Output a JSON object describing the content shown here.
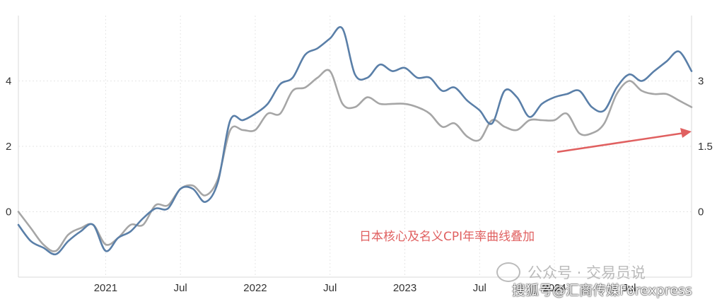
{
  "chart_data": {
    "type": "line",
    "title": "",
    "annotation": "日本核心及名义CPI年率曲线叠加",
    "x_ticks": [
      "2021",
      "Jul",
      "2022",
      "Jul",
      "2023",
      "Jul",
      "2024",
      "Jul"
    ],
    "x_tick_dates": [
      "2021-01",
      "2021-07",
      "2022-01",
      "2022-07",
      "2023-01",
      "2023-07",
      "2024-01",
      "2024-07"
    ],
    "xlim": [
      "2020-06",
      "2024-12"
    ],
    "left_axis": {
      "ticks": [
        "0",
        "2",
        "4"
      ],
      "tick_values": [
        0,
        2,
        4
      ],
      "ylim": [
        -2.0,
        6.0
      ]
    },
    "right_axis": {
      "ticks": [
        "0",
        "1.5",
        "3"
      ],
      "tick_values": [
        0,
        1.5,
        3
      ],
      "ylim": [
        -1.5,
        4.5
      ]
    },
    "grid": true,
    "series": [
      {
        "axis": "left",
        "color": "#5a7fa8",
        "x": [
          "2020-06",
          "2020-07",
          "2020-08",
          "2020-09",
          "2020-10",
          "2020-11",
          "2020-12",
          "2021-01",
          "2021-02",
          "2021-03",
          "2021-04",
          "2021-05",
          "2021-06",
          "2021-07",
          "2021-08",
          "2021-09",
          "2021-10",
          "2021-11",
          "2021-12",
          "2022-01",
          "2022-02",
          "2022-03",
          "2022-04",
          "2022-05",
          "2022-06",
          "2022-07",
          "2022-08",
          "2022-09",
          "2022-10",
          "2022-11",
          "2022-12",
          "2023-01",
          "2023-02",
          "2023-03",
          "2023-04",
          "2023-05",
          "2023-06",
          "2023-07",
          "2023-08",
          "2023-09",
          "2023-10",
          "2023-11",
          "2023-12",
          "2024-01",
          "2024-02",
          "2024-03",
          "2024-04",
          "2024-05",
          "2024-06",
          "2024-07",
          "2024-08",
          "2024-09",
          "2024-10",
          "2024-11",
          "2024-12"
        ],
        "values": [
          -0.4,
          -0.9,
          -1.1,
          -1.3,
          -0.9,
          -0.6,
          -0.4,
          -1.2,
          -0.8,
          -0.6,
          -0.2,
          0.1,
          0.1,
          0.7,
          0.7,
          0.3,
          0.9,
          2.8,
          2.8,
          3.0,
          3.3,
          3.9,
          4.1,
          4.8,
          5.0,
          5.3,
          5.6,
          4.2,
          4.1,
          4.5,
          4.3,
          4.4,
          4.1,
          4.1,
          3.7,
          3.8,
          3.4,
          3.1,
          2.7,
          3.7,
          3.5,
          2.9,
          3.3,
          3.5,
          3.6,
          3.7,
          3.2,
          3.1,
          3.8,
          4.2,
          4.0,
          4.3,
          4.6,
          4.9,
          4.3
        ]
      },
      {
        "axis": "left",
        "color": "#a6a6a6",
        "x": [
          "2020-06",
          "2020-07",
          "2020-08",
          "2020-09",
          "2020-10",
          "2020-11",
          "2020-12",
          "2021-01",
          "2021-02",
          "2021-03",
          "2021-04",
          "2021-05",
          "2021-06",
          "2021-07",
          "2021-08",
          "2021-09",
          "2021-10",
          "2021-11",
          "2021-12",
          "2022-01",
          "2022-02",
          "2022-03",
          "2022-04",
          "2022-05",
          "2022-06",
          "2022-07",
          "2022-08",
          "2022-09",
          "2022-10",
          "2022-11",
          "2022-12",
          "2023-01",
          "2023-02",
          "2023-03",
          "2023-04",
          "2023-05",
          "2023-06",
          "2023-07",
          "2023-08",
          "2023-09",
          "2023-10",
          "2023-11",
          "2023-12",
          "2024-01",
          "2024-02",
          "2024-03",
          "2024-04",
          "2024-05",
          "2024-06",
          "2024-07",
          "2024-08",
          "2024-09",
          "2024-10",
          "2024-11",
          "2024-12"
        ],
        "values": [
          0.0,
          -0.5,
          -1.0,
          -1.2,
          -0.7,
          -0.5,
          -0.4,
          -1.0,
          -0.8,
          -0.4,
          -0.4,
          0.2,
          0.2,
          0.7,
          0.8,
          0.5,
          1.0,
          2.5,
          2.5,
          2.5,
          3.0,
          3.0,
          3.7,
          3.8,
          4.1,
          4.3,
          3.3,
          3.2,
          3.5,
          3.3,
          3.3,
          3.3,
          3.2,
          3.0,
          2.6,
          2.7,
          2.3,
          2.2,
          2.8,
          2.6,
          2.5,
          2.8,
          2.8,
          2.8,
          3.0,
          2.4,
          2.4,
          2.7,
          3.6,
          4.0,
          3.7,
          3.6,
          3.6,
          3.4,
          3.2
        ]
      }
    ]
  },
  "watermark": {
    "line1": "公众号 · 交易员说",
    "line2": "搜狐号@汇商传媒Forexpress"
  }
}
